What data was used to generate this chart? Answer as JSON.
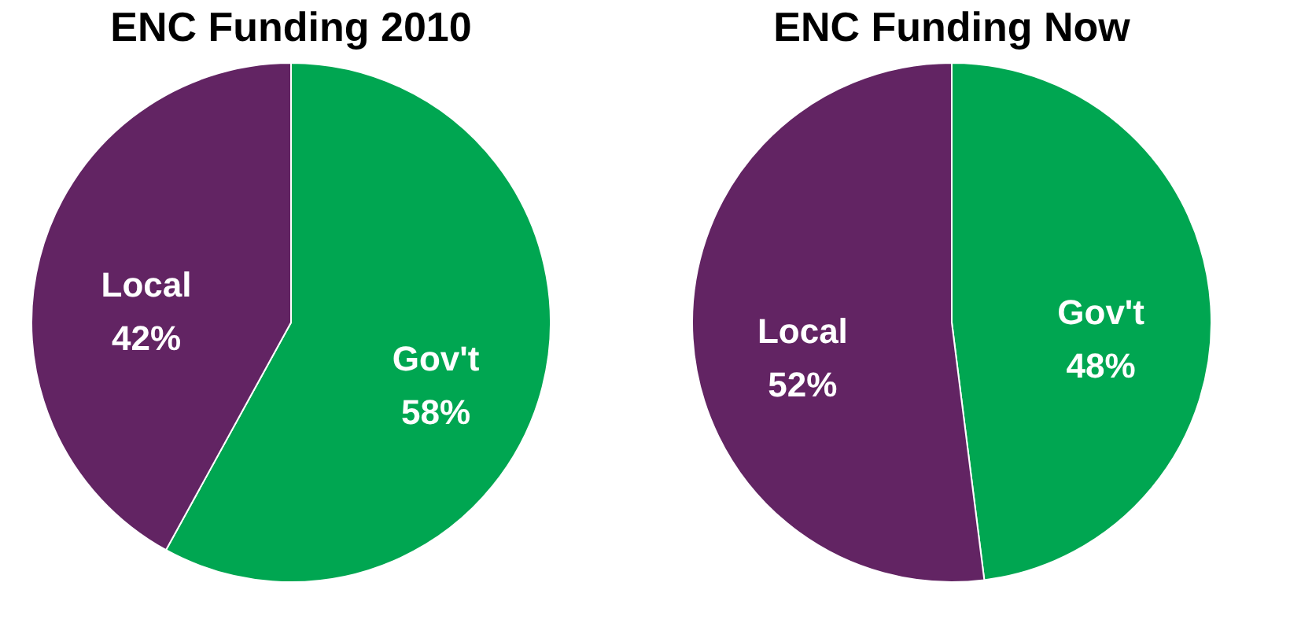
{
  "chart_data": [
    {
      "type": "pie",
      "title": "ENC Funding 2010",
      "categories": [
        "Gov't",
        "Local"
      ],
      "values": [
        58,
        42
      ],
      "colors": [
        "#00a651",
        "#622463"
      ],
      "value_labels": [
        "58%",
        "42%"
      ],
      "legend": false
    },
    {
      "type": "pie",
      "title": "ENC Funding Now",
      "categories": [
        "Gov't",
        "Local"
      ],
      "values": [
        48,
        52
      ],
      "colors": [
        "#00a651",
        "#622463"
      ],
      "value_labels": [
        "48%",
        "52%"
      ],
      "legend": false
    }
  ]
}
